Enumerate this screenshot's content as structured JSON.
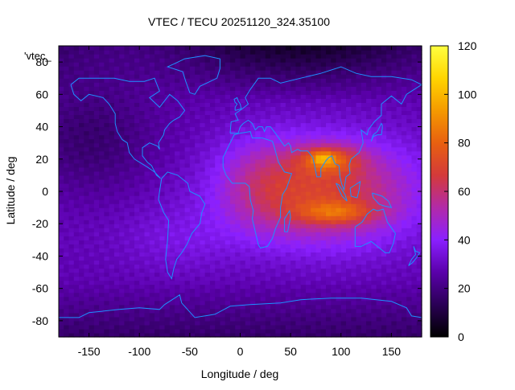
{
  "chart_data": {
    "type": "heatmap",
    "title": "VTEC / TECU 20251120_324.35100",
    "xlabel": "Longitude / deg",
    "ylabel": "Latitude / deg",
    "xlim": [
      -180,
      180
    ],
    "ylim": [
      -90,
      90
    ],
    "xticks": [
      -150,
      -100,
      -50,
      0,
      50,
      100,
      150
    ],
    "yticks": [
      -80,
      -60,
      -40,
      -20,
      0,
      20,
      40,
      60,
      80
    ],
    "colorbar": {
      "range": [
        0,
        120
      ],
      "ticks": [
        0,
        20,
        40,
        60,
        80,
        100,
        120
      ],
      "palette": [
        "#000000",
        "#2a0055",
        "#5a00aa",
        "#8a20ff",
        "#b22aa8",
        "#d43a3a",
        "#e86010",
        "#f59a00",
        "#ffd500",
        "#ffff40"
      ]
    },
    "legend_label": "'vtec_",
    "grid_resolution_deg": [
      5,
      2.5
    ],
    "peak_vtec": 115,
    "coastline_color": "#1e90ff"
  }
}
